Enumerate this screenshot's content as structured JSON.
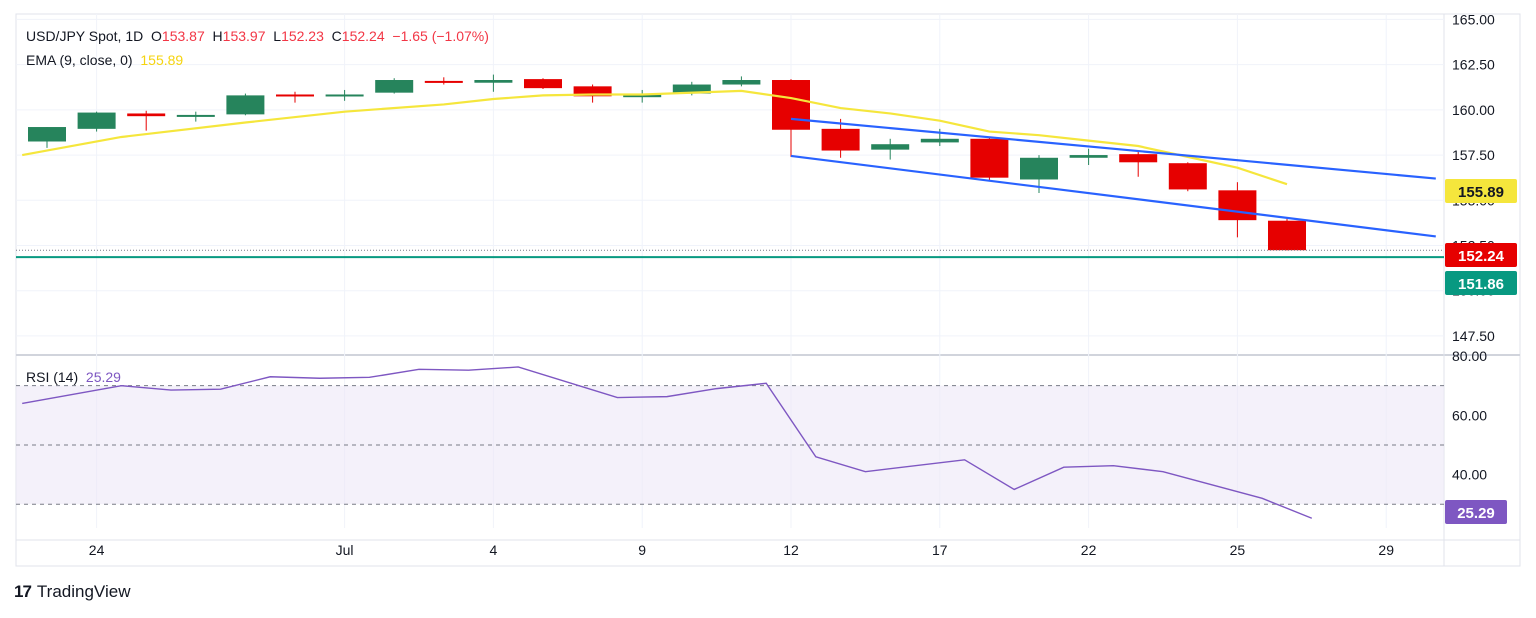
{
  "header": {
    "symbol": "USD/JPY Spot, 1D",
    "o_label": "O",
    "o_value": "153.87",
    "h_label": "H",
    "h_value": "153.97",
    "l_label": "L",
    "l_value": "152.23",
    "c_label": "C",
    "c_value": "152.24",
    "change": "−1.65 (−1.07%)",
    "ema_label": "EMA (9, close, 0)",
    "ema_value": "155.89",
    "rsi_label": "RSI (14)",
    "rsi_value": "25.29"
  },
  "branding": {
    "logo_text": "TradingView",
    "logo_mark": "17"
  },
  "colors": {
    "up": "#26845c",
    "down": "#e60000",
    "ema": "#f5e63c",
    "channel": "#2962ff",
    "support": "#089981",
    "rsi": "#7e57c2",
    "rsi_band": "#ede7f6"
  },
  "chart_data": [
    {
      "type": "candlestick",
      "title": "USD/JPY Spot, 1D",
      "ylim": [
        146.5,
        165.3
      ],
      "y_ticks": [
        "165.00",
        "162.50",
        "160.00",
        "157.50",
        "155.00",
        "152.50",
        "150.00",
        "147.50"
      ],
      "x_ticks": [
        {
          "label": "24",
          "index": 1
        },
        {
          "label": "Jul",
          "index": 6
        },
        {
          "label": "4",
          "index": 9
        },
        {
          "label": "9",
          "index": 12
        },
        {
          "label": "12",
          "index": 15
        },
        {
          "label": "17",
          "index": 18
        },
        {
          "label": "22",
          "index": 21
        },
        {
          "label": "25",
          "index": 24
        },
        {
          "label": "29",
          "index": 27
        }
      ],
      "candles": [
        {
          "o": 158.25,
          "h": 159.05,
          "l": 157.9,
          "c": 159.05
        },
        {
          "o": 158.95,
          "h": 159.9,
          "l": 158.8,
          "c": 159.85
        },
        {
          "o": 159.8,
          "h": 159.95,
          "l": 158.85,
          "c": 159.65
        },
        {
          "o": 159.7,
          "h": 159.9,
          "l": 159.35,
          "c": 159.72
        },
        {
          "o": 159.75,
          "h": 160.9,
          "l": 159.7,
          "c": 160.8
        },
        {
          "o": 160.85,
          "h": 161.0,
          "l": 160.4,
          "c": 160.8
        },
        {
          "o": 160.78,
          "h": 161.1,
          "l": 160.5,
          "c": 160.85
        },
        {
          "o": 160.95,
          "h": 161.75,
          "l": 160.9,
          "c": 161.65
        },
        {
          "o": 161.6,
          "h": 161.8,
          "l": 161.4,
          "c": 161.55
        },
        {
          "o": 161.5,
          "h": 161.95,
          "l": 161.0,
          "c": 161.65
        },
        {
          "o": 161.7,
          "h": 161.75,
          "l": 161.15,
          "c": 161.2
        },
        {
          "o": 161.3,
          "h": 161.4,
          "l": 160.4,
          "c": 160.75
        },
        {
          "o": 160.7,
          "h": 161.1,
          "l": 160.4,
          "c": 160.85
        },
        {
          "o": 160.9,
          "h": 161.55,
          "l": 160.8,
          "c": 161.4
        },
        {
          "o": 161.4,
          "h": 161.85,
          "l": 161.3,
          "c": 161.65
        },
        {
          "o": 161.65,
          "h": 161.7,
          "l": 157.4,
          "c": 158.9
        },
        {
          "o": 158.95,
          "h": 159.5,
          "l": 157.35,
          "c": 157.75
        },
        {
          "o": 157.8,
          "h": 158.4,
          "l": 157.25,
          "c": 158.1
        },
        {
          "o": 158.2,
          "h": 158.95,
          "l": 158.0,
          "c": 158.4
        },
        {
          "o": 158.4,
          "h": 158.45,
          "l": 156.05,
          "c": 156.25
        },
        {
          "o": 156.15,
          "h": 157.5,
          "l": 155.4,
          "c": 157.35
        },
        {
          "o": 157.35,
          "h": 157.85,
          "l": 156.95,
          "c": 157.5
        },
        {
          "o": 157.55,
          "h": 157.75,
          "l": 156.3,
          "c": 157.1
        },
        {
          "o": 157.05,
          "h": 157.1,
          "l": 155.5,
          "c": 155.6
        },
        {
          "o": 155.55,
          "h": 156.0,
          "l": 152.95,
          "c": 153.9
        },
        {
          "o": 153.87,
          "h": 153.97,
          "l": 152.23,
          "c": 152.24
        }
      ],
      "ema": {
        "name": "EMA (9, close, 0)",
        "x": [
          -0.5,
          1.5,
          4,
          6,
          8,
          9,
          10,
          11,
          12,
          14,
          15,
          16,
          17,
          18,
          19,
          20,
          21,
          22,
          23,
          24,
          25
        ],
        "values": [
          157.5,
          158.5,
          159.3,
          159.9,
          160.3,
          160.6,
          160.8,
          160.85,
          160.85,
          161.05,
          160.65,
          160.1,
          159.8,
          159.4,
          158.8,
          158.6,
          158.3,
          158.0,
          157.4,
          156.8,
          155.89
        ]
      },
      "channel": {
        "upper": {
          "x": [
            15,
            28
          ],
          "y": [
            159.5,
            156.2
          ]
        },
        "lower": {
          "x": [
            15,
            28
          ],
          "y": [
            157.45,
            153.0
          ]
        }
      },
      "support_level": 151.86,
      "last_price_line": 152.24,
      "price_labels": [
        {
          "value": "155.89",
          "price": 155.89
        },
        {
          "value": "152.24",
          "price": 152.24
        },
        {
          "value": "151.86",
          "price": 151.86
        }
      ]
    },
    {
      "type": "line",
      "title": "RSI (14)",
      "ylim": [
        22,
        80
      ],
      "y_ticks": [
        "80.00",
        "60.00",
        "40.00"
      ],
      "bands": [
        70,
        50,
        30
      ],
      "x": [
        -0.5,
        1.5,
        2.5,
        3.5,
        4.5,
        5.5,
        6.5,
        7.5,
        8.5,
        9.5,
        11.5,
        12.5,
        13.5,
        14.5,
        15.5,
        16.5,
        18.5,
        19.5,
        20.5,
        21.5,
        22.5,
        24.5,
        25.5
      ],
      "values": [
        64,
        70,
        68.5,
        68.8,
        73,
        72.5,
        72.8,
        75.5,
        75.2,
        76.3,
        66,
        66.3,
        69,
        70.8,
        46,
        41,
        45,
        35,
        42.5,
        43,
        41,
        32,
        25.29
      ],
      "last_value": "25.29"
    }
  ]
}
